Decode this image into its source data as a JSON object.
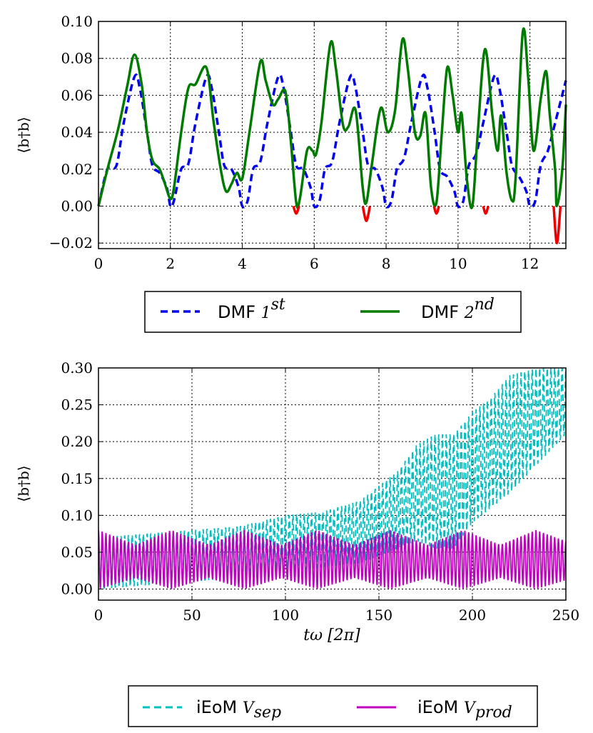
{
  "chart_data": [
    {
      "type": "line",
      "ylabel": "⟨b†b⟩",
      "xlim": [
        0,
        13
      ],
      "ylim": [
        -0.023,
        0.1
      ],
      "x_ticks": [
        "0",
        "2",
        "4",
        "6",
        "8",
        "10",
        "12"
      ],
      "y_ticks": [
        "−0.02",
        "0.00",
        "0.02",
        "0.04",
        "0.06",
        "0.08",
        "0.10"
      ],
      "grid": true,
      "legend_position": "below",
      "series": [
        {
          "name": "DMF 1st",
          "color": "#0000ee",
          "style": "dashed",
          "points": [
            [
              0,
              0
            ],
            [
              0.25,
              0.02
            ],
            [
              0.5,
              0.022
            ],
            [
              0.7,
              0.045
            ],
            [
              1.0,
              0.07
            ],
            [
              1.15,
              0.064
            ],
            [
              1.35,
              0.04
            ],
            [
              1.5,
              0.022
            ],
            [
              1.7,
              0.018
            ],
            [
              1.9,
              0.01
            ],
            [
              2.0,
              0.0
            ],
            [
              2.1,
              0.003
            ],
            [
              2.3,
              0.02
            ],
            [
              2.5,
              0.023
            ],
            [
              2.7,
              0.045
            ],
            [
              3.0,
              0.07
            ],
            [
              3.15,
              0.064
            ],
            [
              3.35,
              0.04
            ],
            [
              3.5,
              0.022
            ],
            [
              3.7,
              0.02
            ],
            [
              3.9,
              0.01
            ],
            [
              4.0,
              0.0
            ],
            [
              4.15,
              0.003
            ],
            [
              4.3,
              0.02
            ],
            [
              4.5,
              0.024
            ],
            [
              4.7,
              0.045
            ],
            [
              5.0,
              0.07
            ],
            [
              5.15,
              0.064
            ],
            [
              5.35,
              0.04
            ],
            [
              5.5,
              0.022
            ],
            [
              5.7,
              0.02
            ],
            [
              5.9,
              0.01
            ],
            [
              6.0,
              0.0
            ],
            [
              6.15,
              0.003
            ],
            [
              6.3,
              0.02
            ],
            [
              6.5,
              0.024
            ],
            [
              6.7,
              0.045
            ],
            [
              7.0,
              0.07
            ],
            [
              7.15,
              0.064
            ],
            [
              7.35,
              0.04
            ],
            [
              7.5,
              0.022
            ],
            [
              7.7,
              0.02
            ],
            [
              7.9,
              0.01
            ],
            [
              8.0,
              0.0
            ],
            [
              8.15,
              0.003
            ],
            [
              8.3,
              0.02
            ],
            [
              8.5,
              0.026
            ],
            [
              8.7,
              0.045
            ],
            [
              9.0,
              0.07
            ],
            [
              9.15,
              0.064
            ],
            [
              9.35,
              0.04
            ],
            [
              9.5,
              0.02
            ],
            [
              9.7,
              0.016
            ],
            [
              9.9,
              0.008
            ],
            [
              10.0,
              0.0
            ],
            [
              10.15,
              0.003
            ],
            [
              10.3,
              0.022
            ],
            [
              10.5,
              0.028
            ],
            [
              10.7,
              0.045
            ],
            [
              11.0,
              0.07
            ],
            [
              11.15,
              0.064
            ],
            [
              11.35,
              0.04
            ],
            [
              11.5,
              0.022
            ],
            [
              11.7,
              0.016
            ],
            [
              11.9,
              0.008
            ],
            [
              12.0,
              0.0
            ],
            [
              12.15,
              0.003
            ],
            [
              12.3,
              0.022
            ],
            [
              12.5,
              0.03
            ],
            [
              12.7,
              0.045
            ],
            [
              13.0,
              0.068
            ]
          ]
        },
        {
          "name": "DMF 2nd",
          "color": "#007a00",
          "style": "solid",
          "points": [
            [
              0,
              0
            ],
            [
              0.25,
              0.02
            ],
            [
              0.55,
              0.042
            ],
            [
              0.8,
              0.065
            ],
            [
              1.0,
              0.082
            ],
            [
              1.2,
              0.066
            ],
            [
              1.35,
              0.04
            ],
            [
              1.5,
              0.025
            ],
            [
              1.7,
              0.02
            ],
            [
              1.85,
              0.012
            ],
            [
              2.0,
              0.004
            ],
            [
              2.1,
              0.01
            ],
            [
              2.3,
              0.04
            ],
            [
              2.5,
              0.064
            ],
            [
              2.7,
              0.066
            ],
            [
              3.0,
              0.075
            ],
            [
              3.2,
              0.046
            ],
            [
              3.4,
              0.02
            ],
            [
              3.55,
              0.008
            ],
            [
              3.7,
              0.012
            ],
            [
              3.85,
              0.018
            ],
            [
              4.0,
              0.015
            ],
            [
              4.2,
              0.04
            ],
            [
              4.5,
              0.078
            ],
            [
              4.65,
              0.068
            ],
            [
              4.85,
              0.055
            ],
            [
              5.0,
              0.058
            ],
            [
              5.2,
              0.062
            ],
            [
              5.35,
              0.035
            ],
            [
              5.5,
              0.002
            ],
            [
              5.6,
              0.004
            ],
            [
              5.8,
              0.03
            ],
            [
              5.95,
              0.03
            ],
            [
              6.05,
              0.028
            ],
            [
              6.2,
              0.045
            ],
            [
              6.45,
              0.088
            ],
            [
              6.6,
              0.075
            ],
            [
              6.8,
              0.044
            ],
            [
              6.95,
              0.043
            ],
            [
              7.15,
              0.052
            ],
            [
              7.35,
              0.01
            ],
            [
              7.45,
              0.002
            ],
            [
              7.6,
              0.022
            ],
            [
              7.85,
              0.053
            ],
            [
              8.05,
              0.04
            ],
            [
              8.25,
              0.052
            ],
            [
              8.45,
              0.09
            ],
            [
              8.6,
              0.075
            ],
            [
              8.8,
              0.04
            ],
            [
              8.95,
              0.038
            ],
            [
              9.1,
              0.05
            ],
            [
              9.25,
              0.01
            ],
            [
              9.4,
              0.002
            ],
            [
              9.55,
              0.04
            ],
            [
              9.7,
              0.075
            ],
            [
              9.85,
              0.06
            ],
            [
              10.0,
              0.04
            ],
            [
              10.1,
              0.05
            ],
            [
              10.25,
              0.014
            ],
            [
              10.4,
              0.0
            ],
            [
              10.55,
              0.04
            ],
            [
              10.75,
              0.085
            ],
            [
              10.95,
              0.05
            ],
            [
              11.1,
              0.03
            ],
            [
              11.2,
              0.049
            ],
            [
              11.35,
              0.018
            ],
            [
              11.5,
              0.003
            ],
            [
              11.6,
              0.015
            ],
            [
              11.8,
              0.094
            ],
            [
              11.95,
              0.07
            ],
            [
              12.1,
              0.03
            ],
            [
              12.3,
              0.058
            ],
            [
              12.45,
              0.073
            ],
            [
              12.55,
              0.05
            ],
            [
              12.7,
              0.02
            ],
            [
              12.75,
              0.0
            ],
            [
              12.9,
              0.02
            ],
            [
              13.0,
              0.055
            ]
          ]
        },
        {
          "name": "",
          "color": "#ee0000",
          "style": "solid",
          "segments": [
            [
              [
                5.42,
                0.0
              ],
              [
                5.5,
                -0.004
              ],
              [
                5.58,
                0.0
              ]
            ],
            [
              [
                7.35,
                0.0
              ],
              [
                7.45,
                -0.008
              ],
              [
                7.55,
                0.0
              ]
            ],
            [
              [
                9.33,
                0.0
              ],
              [
                9.4,
                -0.004
              ],
              [
                9.47,
                0.0
              ]
            ],
            [
              [
                10.7,
                0.0
              ],
              [
                10.77,
                -0.004
              ],
              [
                10.84,
                0.0
              ]
            ],
            [
              [
                12.66,
                0.0
              ],
              [
                12.75,
                -0.02
              ],
              [
                12.85,
                0.0
              ]
            ]
          ]
        }
      ]
    },
    {
      "type": "line",
      "xlabel": "tω [2π]",
      "ylabel": "⟨b†b⟩",
      "xlim": [
        0,
        250
      ],
      "ylim": [
        -0.015,
        0.3
      ],
      "x_ticks": [
        "0",
        "50",
        "100",
        "150",
        "200",
        "250"
      ],
      "y_ticks": [
        "0.00",
        "0.05",
        "0.10",
        "0.15",
        "0.20",
        "0.25",
        "0.30"
      ],
      "grid": true,
      "legend_position": "below",
      "series": [
        {
          "name": "iEoM V_sep",
          "color": "#00bfbf",
          "style": "dashed",
          "oscillation_period": 2.0,
          "envelope": [
            [
              0,
              0.0,
              0.07
            ],
            [
              25,
              0.005,
              0.075
            ],
            [
              50,
              0.01,
              0.08
            ],
            [
              75,
              0.015,
              0.085
            ],
            [
              100,
              0.02,
              0.1
            ],
            [
              120,
              0.03,
              0.105
            ],
            [
              140,
              0.035,
              0.12
            ],
            [
              150,
              0.045,
              0.14
            ],
            [
              160,
              0.055,
              0.16
            ],
            [
              170,
              0.065,
              0.195
            ],
            [
              180,
              0.055,
              0.21
            ],
            [
              190,
              0.055,
              0.21
            ],
            [
              200,
              0.09,
              0.24
            ],
            [
              210,
              0.11,
              0.26
            ],
            [
              220,
              0.13,
              0.29
            ],
            [
              235,
              0.17,
              0.3
            ],
            [
              250,
              0.21,
              0.3
            ]
          ]
        },
        {
          "name": "iEoM V_prod",
          "color": "#bf00bf",
          "style": "solid",
          "oscillation_period": 2.0,
          "envelope": [
            [
              0,
              0.0,
              0.08
            ],
            [
              20,
              0.015,
              0.06
            ],
            [
              39,
              0.0,
              0.08
            ],
            [
              59,
              0.015,
              0.06
            ],
            [
              78,
              0.0,
              0.08
            ],
            [
              98,
              0.015,
              0.06
            ],
            [
              117,
              0.0,
              0.08
            ],
            [
              137,
              0.015,
              0.06
            ],
            [
              156,
              0.0,
              0.08
            ],
            [
              176,
              0.015,
              0.06
            ],
            [
              195,
              0.0,
              0.08
            ],
            [
              215,
              0.015,
              0.06
            ],
            [
              234,
              0.0,
              0.08
            ],
            [
              250,
              0.012,
              0.065
            ]
          ]
        }
      ]
    }
  ],
  "legends": [
    {
      "entries": [
        {
          "text": "DMF ",
          "math": "1",
          "sup": "st",
          "color": "#0000ee",
          "style": "dashed"
        },
        {
          "text": "DMF ",
          "math": "2",
          "sup": "nd",
          "color": "#007a00",
          "style": "solid"
        }
      ]
    },
    {
      "entries": [
        {
          "text": "iEoM ",
          "math": "V",
          "sub": "sep",
          "color": "#00bfbf",
          "style": "dashed"
        },
        {
          "text": "iEoM ",
          "math": "V",
          "sub": "prod",
          "color": "#bf00bf",
          "style": "solid"
        }
      ]
    }
  ]
}
